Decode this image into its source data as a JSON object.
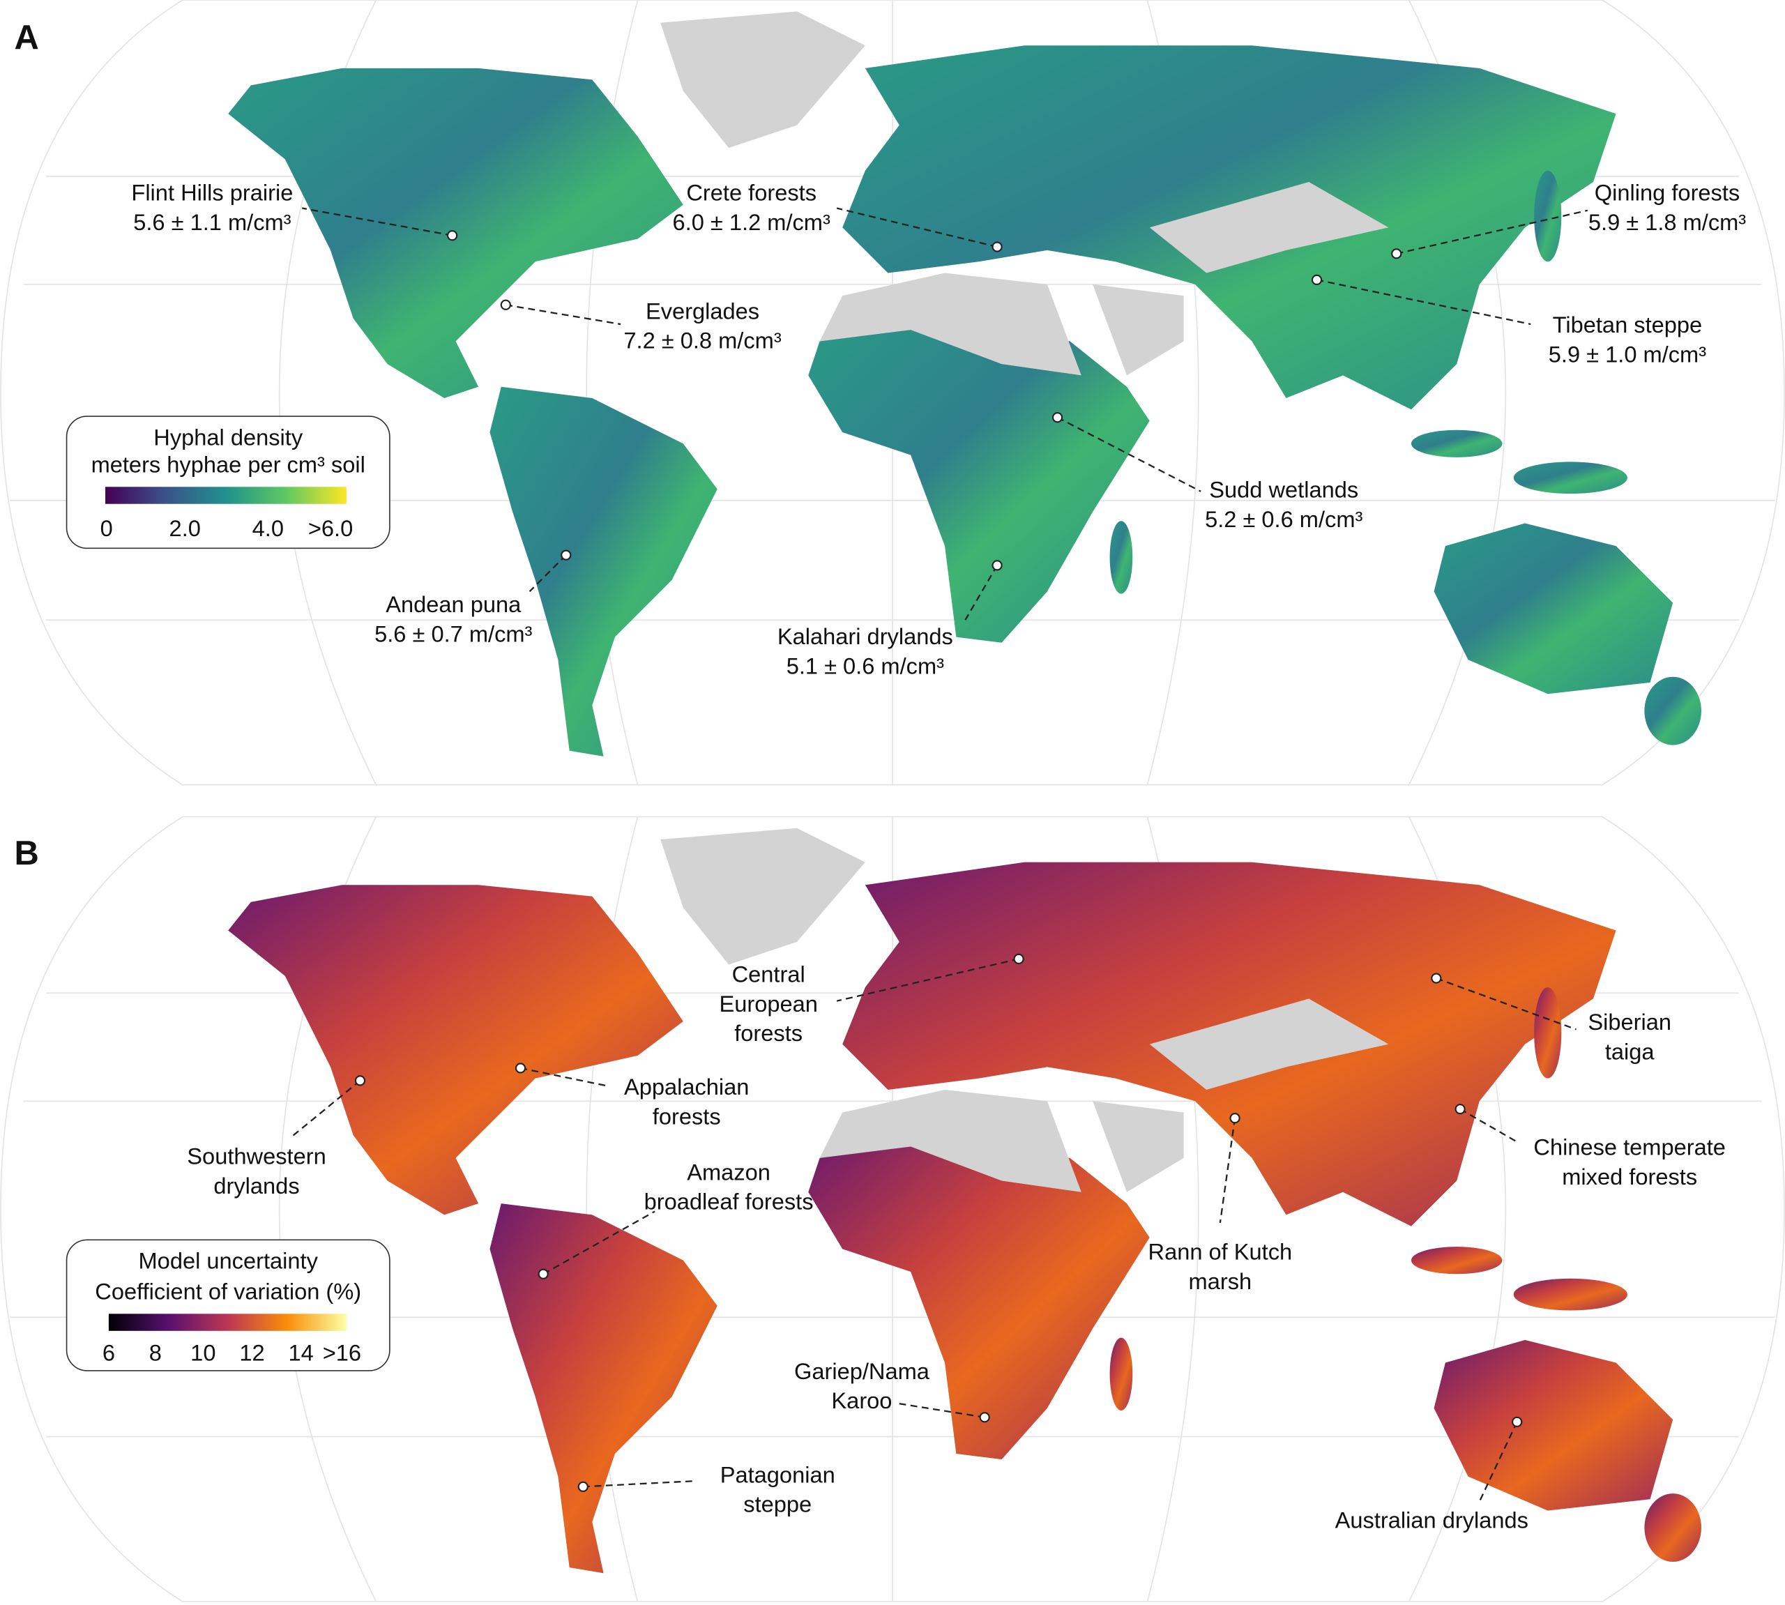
{
  "panels": [
    {
      "letter": "A",
      "legend": {
        "title": [
          "Hyphal density",
          "meters hyphae per cm³ soil"
        ],
        "ticks": [
          "0",
          "2.0",
          "4.0",
          ">6.0"
        ]
      },
      "annotations": [
        {
          "lines": [
            "Flint Hills prairie",
            "5.6 ± 1.1 m/cm³"
          ]
        },
        {
          "lines": [
            "Crete forests",
            "6.0 ± 1.2 m/cm³"
          ]
        },
        {
          "lines": [
            "Qinling forests",
            "5.9 ± 1.8 m/cm³"
          ]
        },
        {
          "lines": [
            "Everglades",
            "7.2 ± 0.8 m/cm³"
          ]
        },
        {
          "lines": [
            "Tibetan steppe",
            "5.9 ± 1.0 m/cm³"
          ]
        },
        {
          "lines": [
            "Sudd wetlands",
            "5.2 ± 0.6 m/cm³"
          ]
        },
        {
          "lines": [
            "Andean puna",
            "5.6 ± 0.7 m/cm³"
          ]
        },
        {
          "lines": [
            "Kalahari drylands",
            "5.1 ± 0.6 m/cm³"
          ]
        }
      ]
    },
    {
      "letter": "B",
      "legend": {
        "title": [
          "Model uncertainty",
          "Coefficient of variation (%)"
        ],
        "ticks": [
          "6",
          "8",
          "10",
          "12",
          "14",
          ">16"
        ]
      },
      "annotations": [
        {
          "lines": [
            "Central",
            "European",
            "forests"
          ]
        },
        {
          "lines": [
            "Siberian",
            "taiga"
          ]
        },
        {
          "lines": [
            "Appalachian",
            "forests"
          ]
        },
        {
          "lines": [
            "Southwestern",
            "drylands"
          ]
        },
        {
          "lines": [
            "Chinese temperate",
            "mixed forests"
          ]
        },
        {
          "lines": [
            "Amazon",
            "broadleaf forests"
          ]
        },
        {
          "lines": [
            "Rann of Kutch",
            "marsh"
          ]
        },
        {
          "lines": [
            "Gariep/Nama",
            "Karoo"
          ]
        },
        {
          "lines": [
            "Patagonian",
            "steppe"
          ]
        },
        {
          "lines": [
            "Australian drylands"
          ]
        }
      ]
    }
  ]
}
